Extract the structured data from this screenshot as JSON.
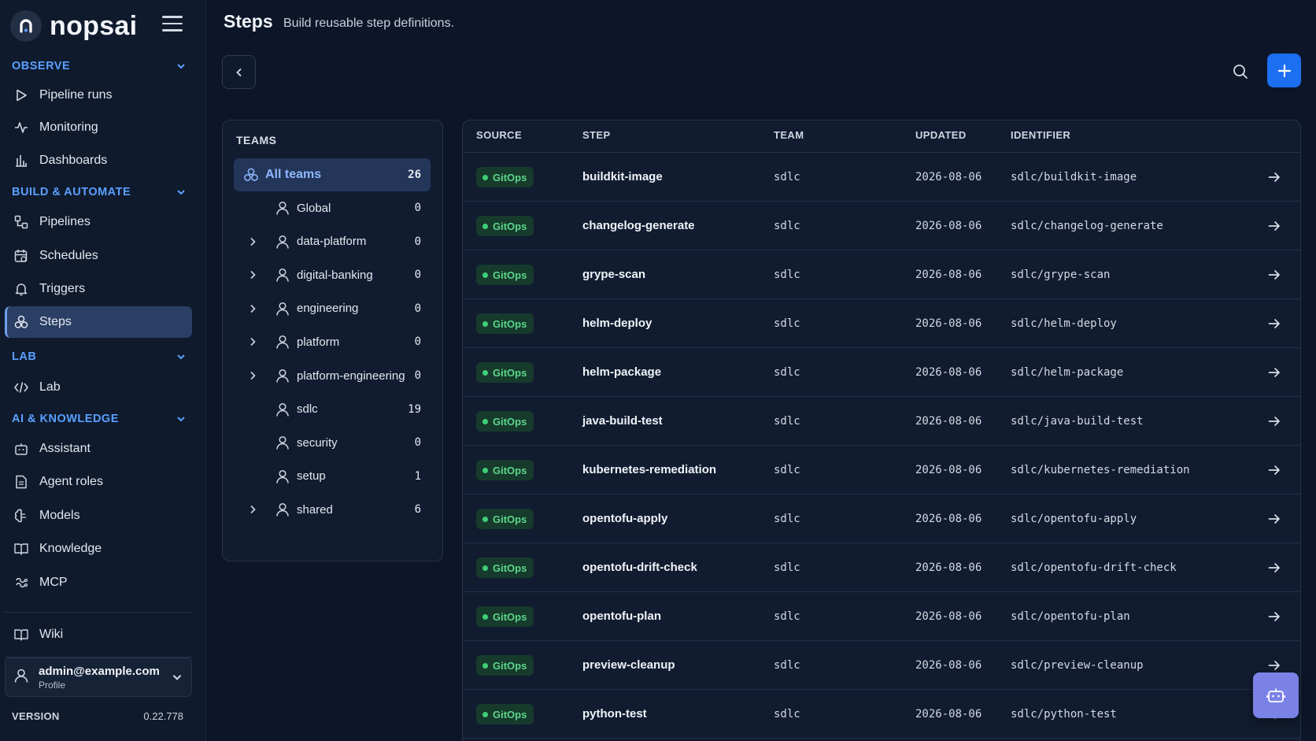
{
  "brand": {
    "name": "nopsai"
  },
  "sidebar": {
    "sections": [
      {
        "label": "OBSERVE",
        "items": [
          "Pipeline runs",
          "Monitoring",
          "Dashboards"
        ]
      },
      {
        "label": "BUILD & AUTOMATE",
        "items": [
          "Pipelines",
          "Schedules",
          "Triggers",
          "Steps"
        ]
      },
      {
        "label": "LAB",
        "items": [
          "Lab"
        ]
      },
      {
        "label": "AI & KNOWLEDGE",
        "items": [
          "Assistant",
          "Agent roles",
          "Models",
          "Knowledge",
          "MCP"
        ]
      }
    ],
    "wiki": "Wiki",
    "active_item": "Steps",
    "profile": {
      "email": "admin@example.com",
      "sub": "Profile"
    },
    "version": {
      "label": "VERSION",
      "value": "0.22.778"
    }
  },
  "header": {
    "title": "Steps",
    "subtitle": "Build reusable step definitions."
  },
  "teams": {
    "heading": "TEAMS",
    "all": {
      "name": "All teams",
      "count": "26"
    },
    "items": [
      {
        "name": "Global",
        "count": "0",
        "expandable": false
      },
      {
        "name": "data-platform",
        "count": "0",
        "expandable": true
      },
      {
        "name": "digital-banking",
        "count": "0",
        "expandable": true
      },
      {
        "name": "engineering",
        "count": "0",
        "expandable": true
      },
      {
        "name": "platform",
        "count": "0",
        "expandable": true
      },
      {
        "name": "platform-engineering",
        "count": "0",
        "expandable": true
      },
      {
        "name": "sdlc",
        "count": "19",
        "expandable": false
      },
      {
        "name": "security",
        "count": "0",
        "expandable": false
      },
      {
        "name": "setup",
        "count": "1",
        "expandable": false
      },
      {
        "name": "shared",
        "count": "6",
        "expandable": true
      }
    ]
  },
  "table": {
    "columns": [
      "SOURCE",
      "STEP",
      "TEAM",
      "UPDATED",
      "IDENTIFIER"
    ],
    "rows": [
      {
        "source": "GitOps",
        "step": "buildkit-image",
        "team": "sdlc",
        "updated": "2026-08-06",
        "identifier": "sdlc/buildkit-image"
      },
      {
        "source": "GitOps",
        "step": "changelog-generate",
        "team": "sdlc",
        "updated": "2026-08-06",
        "identifier": "sdlc/changelog-generate"
      },
      {
        "source": "GitOps",
        "step": "grype-scan",
        "team": "sdlc",
        "updated": "2026-08-06",
        "identifier": "sdlc/grype-scan"
      },
      {
        "source": "GitOps",
        "step": "helm-deploy",
        "team": "sdlc",
        "updated": "2026-08-06",
        "identifier": "sdlc/helm-deploy"
      },
      {
        "source": "GitOps",
        "step": "helm-package",
        "team": "sdlc",
        "updated": "2026-08-06",
        "identifier": "sdlc/helm-package"
      },
      {
        "source": "GitOps",
        "step": "java-build-test",
        "team": "sdlc",
        "updated": "2026-08-06",
        "identifier": "sdlc/java-build-test"
      },
      {
        "source": "GitOps",
        "step": "kubernetes-remediation",
        "team": "sdlc",
        "updated": "2026-08-06",
        "identifier": "sdlc/kubernetes-remediation"
      },
      {
        "source": "GitOps",
        "step": "opentofu-apply",
        "team": "sdlc",
        "updated": "2026-08-06",
        "identifier": "sdlc/opentofu-apply"
      },
      {
        "source": "GitOps",
        "step": "opentofu-drift-check",
        "team": "sdlc",
        "updated": "2026-08-06",
        "identifier": "sdlc/opentofu-drift-check"
      },
      {
        "source": "GitOps",
        "step": "opentofu-plan",
        "team": "sdlc",
        "updated": "2026-08-06",
        "identifier": "sdlc/opentofu-plan"
      },
      {
        "source": "GitOps",
        "step": "preview-cleanup",
        "team": "sdlc",
        "updated": "2026-08-06",
        "identifier": "sdlc/preview-cleanup"
      },
      {
        "source": "GitOps",
        "step": "python-test",
        "team": "sdlc",
        "updated": "2026-08-06",
        "identifier": "sdlc/python-test"
      }
    ]
  },
  "colors": {
    "accent": "#1c6ff0",
    "section": "#5aa0ff",
    "gitops": "#5cd68a",
    "fab": "#7b82e6"
  }
}
